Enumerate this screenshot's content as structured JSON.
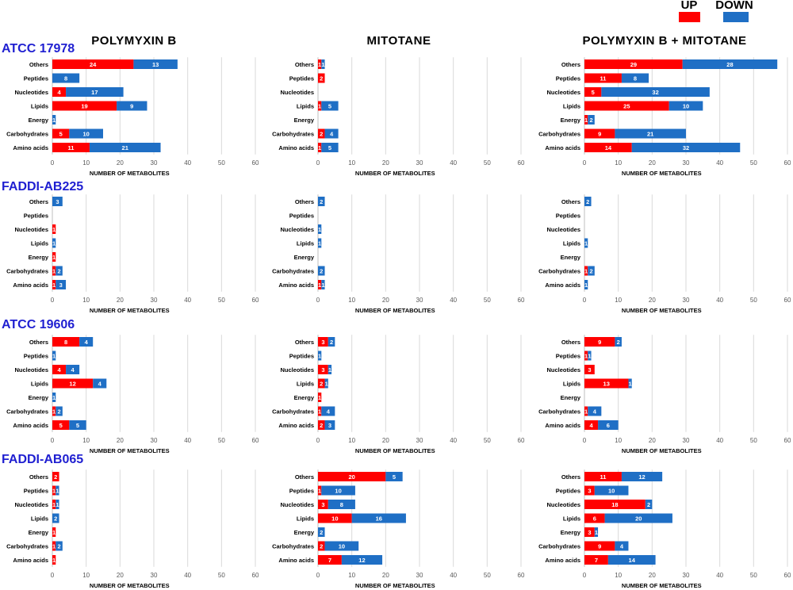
{
  "figure": {
    "columns": [
      "POLYMYXIN B",
      "MITOTANE",
      "POLYMYXIN B + MITOTANE"
    ],
    "strains": [
      "ATCC 17978",
      "FADDI-AB225",
      "ATCC 19606",
      "FADDI-AB065"
    ],
    "legend": [
      {
        "label": "UP",
        "color": "#ff0000"
      },
      {
        "label": "DOWN",
        "color": "#1f6fc5"
      }
    ],
    "colors": {
      "up": "#ff0000",
      "down": "#1f6fc5",
      "strain": "#1f1fd1"
    }
  },
  "chart_data": [
    {
      "type": "bar",
      "orientation": "horizontal",
      "stacked": true,
      "strain": "ATCC 17978",
      "treatment": "POLYMYXIN B",
      "categories": [
        "Others",
        "Peptides",
        "Nucleotides",
        "Lipids",
        "Energy",
        "Carbohydrates",
        "Amino acids"
      ],
      "series": [
        {
          "name": "UP",
          "values": [
            24,
            0,
            4,
            19,
            0,
            5,
            11
          ]
        },
        {
          "name": "DOWN",
          "values": [
            13,
            8,
            17,
            9,
            1,
            10,
            21
          ]
        }
      ],
      "xlabel": "NUMBER OF METABOLITES",
      "xlim": [
        0,
        60
      ],
      "xticks": [
        0,
        10,
        20,
        30,
        40,
        50,
        60
      ]
    },
    {
      "type": "bar",
      "orientation": "horizontal",
      "stacked": true,
      "strain": "ATCC 17978",
      "treatment": "MITOTANE",
      "categories": [
        "Others",
        "Peptides",
        "Nucleotides",
        "Lipids",
        "Energy",
        "Carbohydrates",
        "Amino acids"
      ],
      "series": [
        {
          "name": "UP",
          "values": [
            1,
            2,
            0,
            1,
            0,
            2,
            1
          ]
        },
        {
          "name": "DOWN",
          "values": [
            1,
            0,
            0,
            5,
            0,
            4,
            5
          ]
        }
      ],
      "xlabel": "NUMBER OF METABOLITES",
      "xlim": [
        0,
        60
      ],
      "xticks": [
        0,
        10,
        20,
        30,
        40,
        50,
        60
      ]
    },
    {
      "type": "bar",
      "orientation": "horizontal",
      "stacked": true,
      "strain": "ATCC 17978",
      "treatment": "POLYMYXIN B + MITOTANE",
      "categories": [
        "Others",
        "Peptides",
        "Nucleotides",
        "Lipids",
        "Energy",
        "Carbohydrates",
        "Amino acids"
      ],
      "series": [
        {
          "name": "UP",
          "values": [
            29,
            11,
            5,
            25,
            1,
            9,
            14
          ]
        },
        {
          "name": "DOWN",
          "values": [
            28,
            8,
            32,
            10,
            2,
            21,
            32
          ]
        }
      ],
      "xlabel": "NUMBER OF METABOLITES",
      "xlim": [
        0,
        60
      ],
      "xticks": [
        0,
        10,
        20,
        30,
        40,
        50,
        60
      ]
    },
    {
      "type": "bar",
      "orientation": "horizontal",
      "stacked": true,
      "strain": "FADDI-AB225",
      "treatment": "POLYMYXIN B",
      "categories": [
        "Others",
        "Peptides",
        "Nucleotides",
        "Lipids",
        "Energy",
        "Carbohydrates",
        "Amino acids"
      ],
      "series": [
        {
          "name": "UP",
          "values": [
            0,
            0,
            1,
            0,
            1,
            1,
            1
          ]
        },
        {
          "name": "DOWN",
          "values": [
            3,
            0,
            0,
            1,
            0,
            2,
            3
          ]
        }
      ],
      "xlabel": "NUMBER OF METABOLITES",
      "xlim": [
        0,
        60
      ],
      "xticks": [
        0,
        10,
        20,
        30,
        40,
        50,
        60
      ]
    },
    {
      "type": "bar",
      "orientation": "horizontal",
      "stacked": true,
      "strain": "FADDI-AB225",
      "treatment": "MITOTANE",
      "categories": [
        "Others",
        "Peptides",
        "Nucleotides",
        "Lipids",
        "Energy",
        "Carbohydrates",
        "Amino acids"
      ],
      "series": [
        {
          "name": "UP",
          "values": [
            0,
            0,
            0,
            0,
            0,
            0,
            1
          ]
        },
        {
          "name": "DOWN",
          "values": [
            2,
            0,
            1,
            1,
            0,
            2,
            1
          ]
        }
      ],
      "xlabel": "NUMBER OF METABOLITES",
      "xlim": [
        0,
        60
      ],
      "xticks": [
        0,
        10,
        20,
        30,
        40,
        50,
        60
      ]
    },
    {
      "type": "bar",
      "orientation": "horizontal",
      "stacked": true,
      "strain": "FADDI-AB225",
      "treatment": "POLYMYXIN B + MITOTANE",
      "categories": [
        "Others",
        "Peptides",
        "Nucleotides",
        "Lipids",
        "Energy",
        "Carbohydrates",
        "Amino acids"
      ],
      "series": [
        {
          "name": "UP",
          "values": [
            0,
            0,
            0,
            0,
            0,
            1,
            0
          ]
        },
        {
          "name": "DOWN",
          "values": [
            2,
            0,
            0,
            1,
            0,
            2,
            1
          ]
        }
      ],
      "xlabel": "NUMBER OF METABOLITES",
      "xlim": [
        0,
        60
      ],
      "xticks": [
        0,
        10,
        20,
        30,
        40,
        50,
        60
      ]
    },
    {
      "type": "bar",
      "orientation": "horizontal",
      "stacked": true,
      "strain": "ATCC 19606",
      "treatment": "POLYMYXIN B",
      "categories": [
        "Others",
        "Peptides",
        "Nucleotides",
        "Lipids",
        "Energy",
        "Carbohydrates",
        "Amino acids"
      ],
      "series": [
        {
          "name": "UP",
          "values": [
            8,
            0,
            4,
            12,
            0,
            1,
            5
          ]
        },
        {
          "name": "DOWN",
          "values": [
            4,
            1,
            4,
            4,
            1,
            2,
            5
          ]
        }
      ],
      "xlabel": "NUMBER OF METABOLITES",
      "xlim": [
        0,
        60
      ],
      "xticks": [
        0,
        10,
        20,
        30,
        40,
        50,
        60
      ]
    },
    {
      "type": "bar",
      "orientation": "horizontal",
      "stacked": true,
      "strain": "ATCC 19606",
      "treatment": "MITOTANE",
      "categories": [
        "Others",
        "Peptides",
        "Nucleotides",
        "Lipids",
        "Energy",
        "Carbohydrates",
        "Amino acids"
      ],
      "series": [
        {
          "name": "UP",
          "values": [
            3,
            0,
            3,
            2,
            1,
            1,
            2
          ]
        },
        {
          "name": "DOWN",
          "values": [
            2,
            1,
            1,
            1,
            0,
            4,
            3
          ]
        }
      ],
      "xlabel": "NUMBER OF METABOLITES",
      "xlim": [
        0,
        60
      ],
      "xticks": [
        0,
        10,
        20,
        30,
        40,
        50,
        60
      ]
    },
    {
      "type": "bar",
      "orientation": "horizontal",
      "stacked": true,
      "strain": "ATCC 19606",
      "treatment": "POLYMYXIN B + MITOTANE",
      "categories": [
        "Others",
        "Peptides",
        "Nucleotides",
        "Lipids",
        "Energy",
        "Carbohydrates",
        "Amino acids"
      ],
      "series": [
        {
          "name": "UP",
          "values": [
            9,
            1,
            3,
            13,
            0,
            1,
            4
          ]
        },
        {
          "name": "DOWN",
          "values": [
            2,
            1,
            0,
            1,
            0,
            4,
            6
          ]
        }
      ],
      "xlabel": "NUMBER OF METABOLITES",
      "xlim": [
        0,
        60
      ],
      "xticks": [
        0,
        10,
        20,
        30,
        40,
        50,
        60
      ]
    },
    {
      "type": "bar",
      "orientation": "horizontal",
      "stacked": true,
      "strain": "FADDI-AB065",
      "treatment": "POLYMYXIN B",
      "categories": [
        "Others",
        "Peptides",
        "Nucleotides",
        "Lipids",
        "Energy",
        "Carbohydrates",
        "Amino acids"
      ],
      "series": [
        {
          "name": "UP",
          "values": [
            2,
            1,
            1,
            0,
            1,
            1,
            1
          ]
        },
        {
          "name": "DOWN",
          "values": [
            0,
            1,
            1,
            2,
            0,
            2,
            0
          ]
        }
      ],
      "xlabel": "NUMBER OF METABOLITES",
      "xlim": [
        0,
        60
      ],
      "xticks": [
        0,
        10,
        20,
        30,
        40,
        50,
        60
      ]
    },
    {
      "type": "bar",
      "orientation": "horizontal",
      "stacked": true,
      "strain": "FADDI-AB065",
      "treatment": "MITOTANE",
      "categories": [
        "Others",
        "Peptides",
        "Nucleotides",
        "Lipids",
        "Energy",
        "Carbohydrates",
        "Amino acids"
      ],
      "series": [
        {
          "name": "UP",
          "values": [
            20,
            1,
            3,
            10,
            0,
            2,
            7
          ]
        },
        {
          "name": "DOWN",
          "values": [
            5,
            10,
            8,
            16,
            2,
            10,
            12
          ]
        }
      ],
      "xlabel": "NUMBER OF METABOLITES",
      "xlim": [
        0,
        60
      ],
      "xticks": [
        0,
        10,
        20,
        30,
        40,
        50,
        60
      ]
    },
    {
      "type": "bar",
      "orientation": "horizontal",
      "stacked": true,
      "strain": "FADDI-AB065",
      "treatment": "POLYMYXIN B + MITOTANE",
      "categories": [
        "Others",
        "Peptides",
        "Nucleotides",
        "Lipids",
        "Energy",
        "Carbohydrates",
        "Amino acids"
      ],
      "series": [
        {
          "name": "UP",
          "values": [
            11,
            3,
            18,
            6,
            3,
            9,
            7
          ]
        },
        {
          "name": "DOWN",
          "values": [
            12,
            10,
            2,
            20,
            1,
            4,
            14
          ]
        }
      ],
      "xlabel": "NUMBER OF METABOLITES",
      "xlim": [
        0,
        60
      ],
      "xticks": [
        0,
        10,
        20,
        30,
        40,
        50,
        60
      ]
    }
  ]
}
